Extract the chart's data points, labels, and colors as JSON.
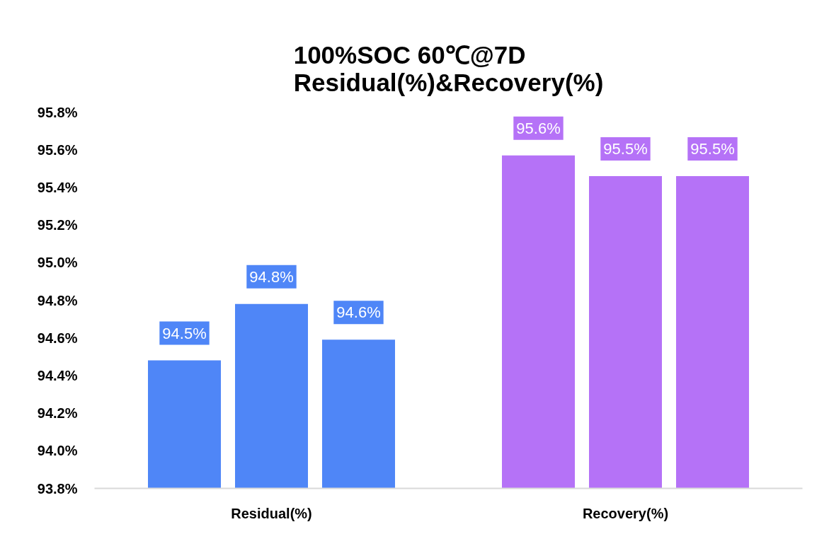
{
  "chart_data": {
    "type": "bar",
    "title": "100%SOC 60℃@7D\nResidual(%)&Recovery(%)",
    "categories": [
      "Residual(%)",
      "Recovery(%)"
    ],
    "series": [
      {
        "colors": [
          "#4f86f7",
          "#b572f7"
        ],
        "values": [
          94.48,
          95.57
        ],
        "value_labels": [
          "94.5%",
          "95.6%"
        ]
      },
      {
        "colors": [
          "#4f86f7",
          "#b572f7"
        ],
        "values": [
          94.78,
          95.46
        ],
        "value_labels": [
          "94.8%",
          "95.5%"
        ]
      },
      {
        "colors": [
          "#4f86f7",
          "#b572f7"
        ],
        "values": [
          94.59,
          95.46
        ],
        "value_labels": [
          "94.6%",
          "95.5%"
        ]
      }
    ],
    "ylim": [
      93.8,
      95.8
    ],
    "yticks": [
      {
        "value": 93.8,
        "label": "93.8%"
      },
      {
        "value": 94.0,
        "label": "94.0%"
      },
      {
        "value": 94.2,
        "label": "94.2%"
      },
      {
        "value": 94.4,
        "label": "94.4%"
      },
      {
        "value": 94.6,
        "label": "94.6%"
      },
      {
        "value": 94.8,
        "label": "94.8%"
      },
      {
        "value": 95.0,
        "label": "95.0%"
      },
      {
        "value": 95.2,
        "label": "95.2%"
      },
      {
        "value": 95.4,
        "label": "95.4%"
      },
      {
        "value": 95.6,
        "label": "95.6%"
      },
      {
        "value": 95.8,
        "label": "95.8%"
      }
    ]
  }
}
